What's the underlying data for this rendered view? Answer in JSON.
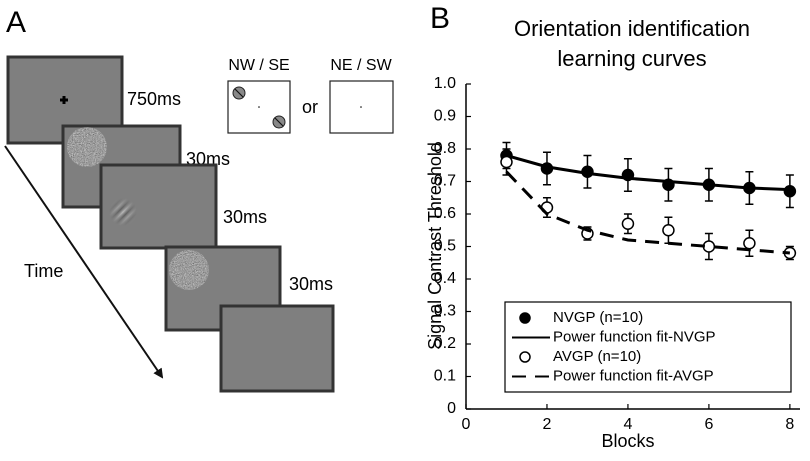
{
  "panel_a": {
    "label": "A",
    "durations": [
      "750ms",
      "30ms",
      "30ms",
      "30ms"
    ],
    "time": "Time",
    "conditions": [
      "NW / SE",
      "NE / SW"
    ],
    "or": "or"
  },
  "chart_data": {
    "type": "line",
    "panel_label": "B",
    "title": [
      "Orientation identification",
      "learning curves"
    ],
    "x_label": "Blocks",
    "y_label": "Signal Contrast Threshold",
    "x": [
      1,
      2,
      3,
      4,
      5,
      6,
      7,
      8
    ],
    "series": [
      {
        "name": "NVGP (n=10)",
        "kind": "points",
        "marker": "filled",
        "color": "#000000",
        "values": [
          0.78,
          0.74,
          0.73,
          0.72,
          0.69,
          0.69,
          0.68,
          0.67
        ],
        "errors": [
          0.04,
          0.05,
          0.05,
          0.05,
          0.05,
          0.05,
          0.05,
          0.05
        ]
      },
      {
        "name": "Power function fit-NVGP",
        "kind": "line",
        "style": "solid",
        "color": "#000000",
        "values": [
          0.78,
          0.745,
          0.725,
          0.71,
          0.7,
          0.69,
          0.68,
          0.675
        ]
      },
      {
        "name": "AVGP (n=10)",
        "kind": "points",
        "marker": "open",
        "color": "#000000",
        "values": [
          0.76,
          0.62,
          0.54,
          0.57,
          0.55,
          0.5,
          0.51,
          0.48
        ],
        "errors": [
          0.04,
          0.03,
          0.02,
          0.03,
          0.04,
          0.04,
          0.04,
          0.02
        ]
      },
      {
        "name": "Power function fit-AVGP",
        "kind": "line",
        "style": "dashed",
        "color": "#000000",
        "values": [
          0.73,
          0.6,
          0.55,
          0.52,
          0.51,
          0.5,
          0.49,
          0.48
        ]
      }
    ],
    "xlim": [
      0,
      8.25
    ],
    "ylim": [
      0,
      1
    ],
    "xticks": [
      0,
      2,
      4,
      6,
      8
    ],
    "yticks": [
      0,
      0.1,
      0.2,
      0.3,
      0.4,
      0.5,
      0.6,
      0.7,
      0.8,
      0.9,
      {
        "value": 1,
        "label": "1.0"
      }
    ],
    "legend": "lower-right"
  }
}
